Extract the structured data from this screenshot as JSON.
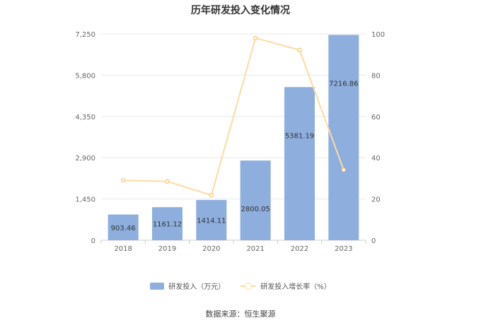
{
  "chart_data": {
    "type": "bar",
    "title": "历年研发投入变化情况",
    "categories": [
      "2018",
      "2019",
      "2020",
      "2021",
      "2022",
      "2023"
    ],
    "series": [
      {
        "name": "研发投入（万元）",
        "type": "bar",
        "axis": "left",
        "values": [
          903.46,
          1161.12,
          1414.11,
          2800.05,
          5381.19,
          7216.86
        ],
        "labels": [
          "903.46",
          "1161.12",
          "1414.11",
          "2800.05",
          "5381.19",
          "7216.86"
        ]
      },
      {
        "name": "研发投入增长率（%）",
        "type": "line",
        "axis": "right",
        "values": [
          29.0,
          28.5,
          21.8,
          98.0,
          92.2,
          34.1
        ]
      }
    ],
    "y_left": {
      "ylim": [
        0,
        7250
      ],
      "ticks": [
        "0",
        "1,450",
        "2,900",
        "4,350",
        "5,800",
        "7,250"
      ]
    },
    "y_right": {
      "ylim": [
        0,
        100
      ],
      "ticks": [
        "0",
        "20",
        "40",
        "60",
        "80",
        "100"
      ]
    },
    "grid": true,
    "legend": "bottom",
    "source": "数据来源：恒生聚源",
    "colors": {
      "bar": "#8eaede",
      "line": "#fbdca0",
      "grid": "#e8e8e8",
      "axis_text": "#666666"
    }
  }
}
